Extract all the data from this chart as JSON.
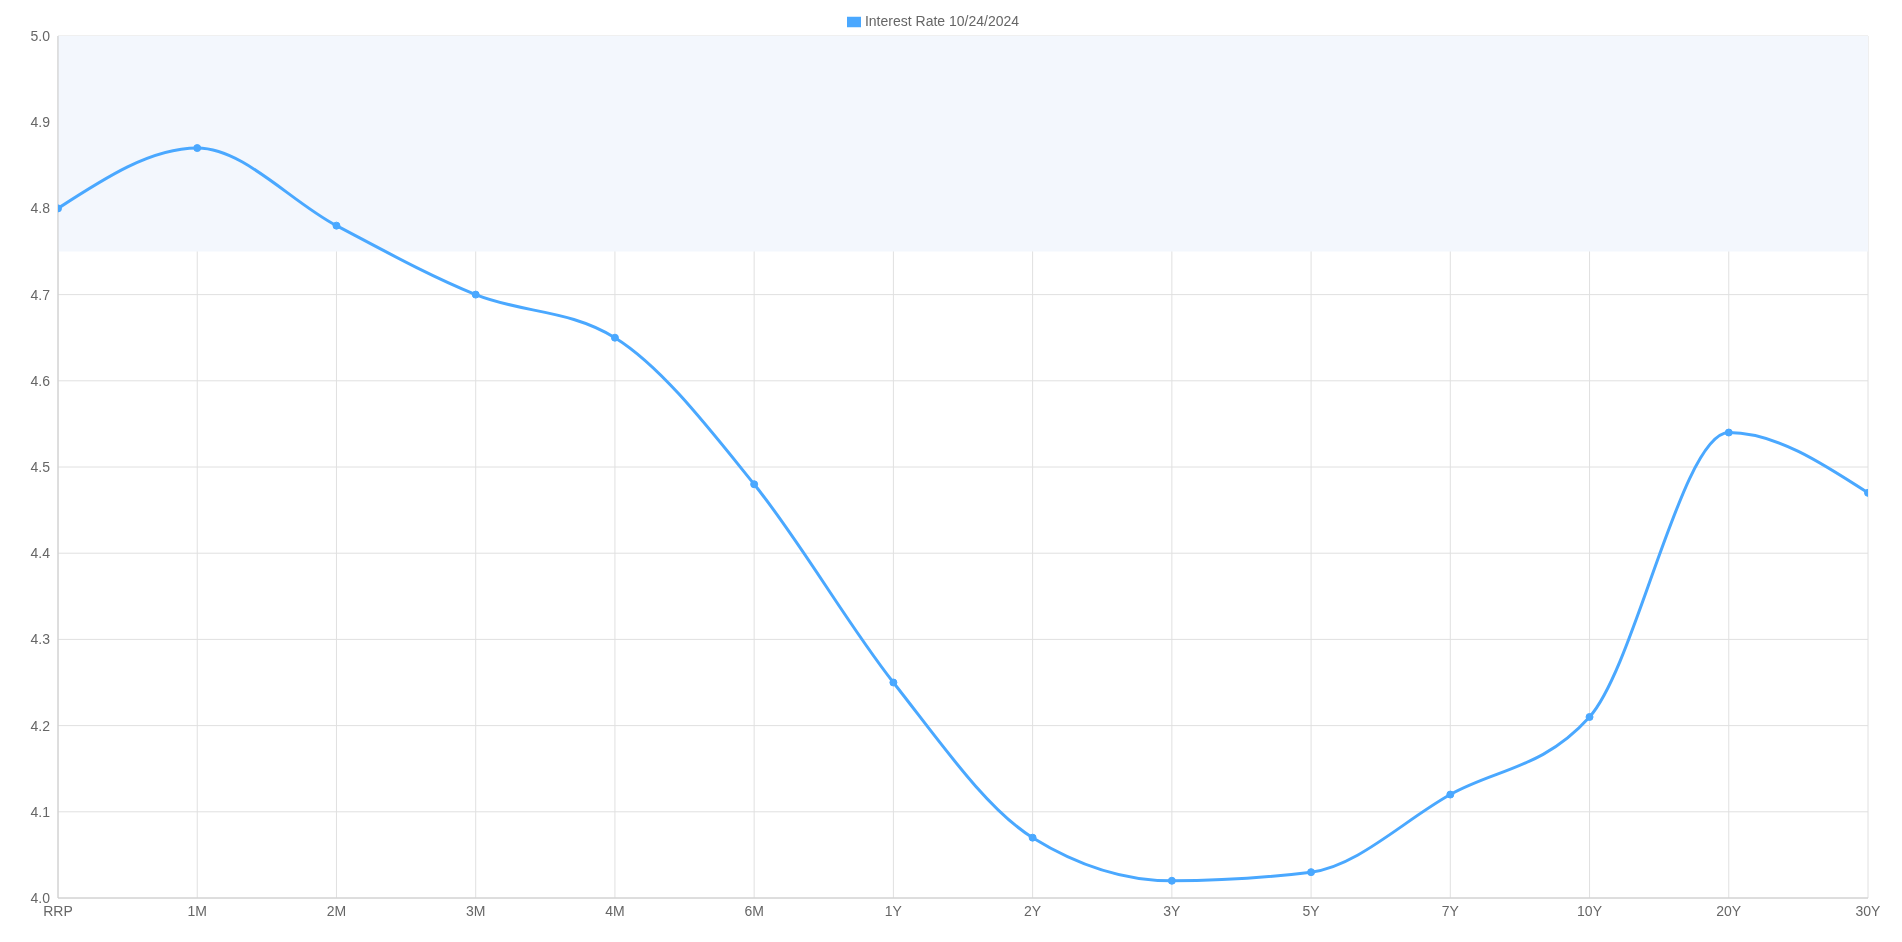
{
  "chart_data": {
    "type": "line",
    "categories": [
      "RRP",
      "1M",
      "2M",
      "3M",
      "4M",
      "6M",
      "1Y",
      "2Y",
      "3Y",
      "5Y",
      "7Y",
      "10Y",
      "20Y",
      "30Y"
    ],
    "series": [
      {
        "name": "Interest Rate 10/24/2024",
        "color": "#4aa8ff",
        "values": [
          4.8,
          4.87,
          4.78,
          4.7,
          4.65,
          4.48,
          4.25,
          4.07,
          4.02,
          4.03,
          4.12,
          4.21,
          4.54,
          4.47
        ]
      }
    ],
    "ylim": [
      4.0,
      5.0
    ],
    "yticks": [
      {
        "value": 4.0,
        "label": "4.0"
      },
      4.1,
      4.2,
      4.3,
      4.4,
      4.5,
      4.6,
      4.7,
      4.8,
      4.9,
      {
        "value": 5.0,
        "label": "5.0"
      }
    ],
    "bands": [
      {
        "axis": "y",
        "from": 4.75,
        "to": 5.0,
        "color": "#f3f7fd"
      }
    ],
    "grid": true,
    "legend": "top",
    "marker": "circle",
    "line_style": "solid"
  }
}
